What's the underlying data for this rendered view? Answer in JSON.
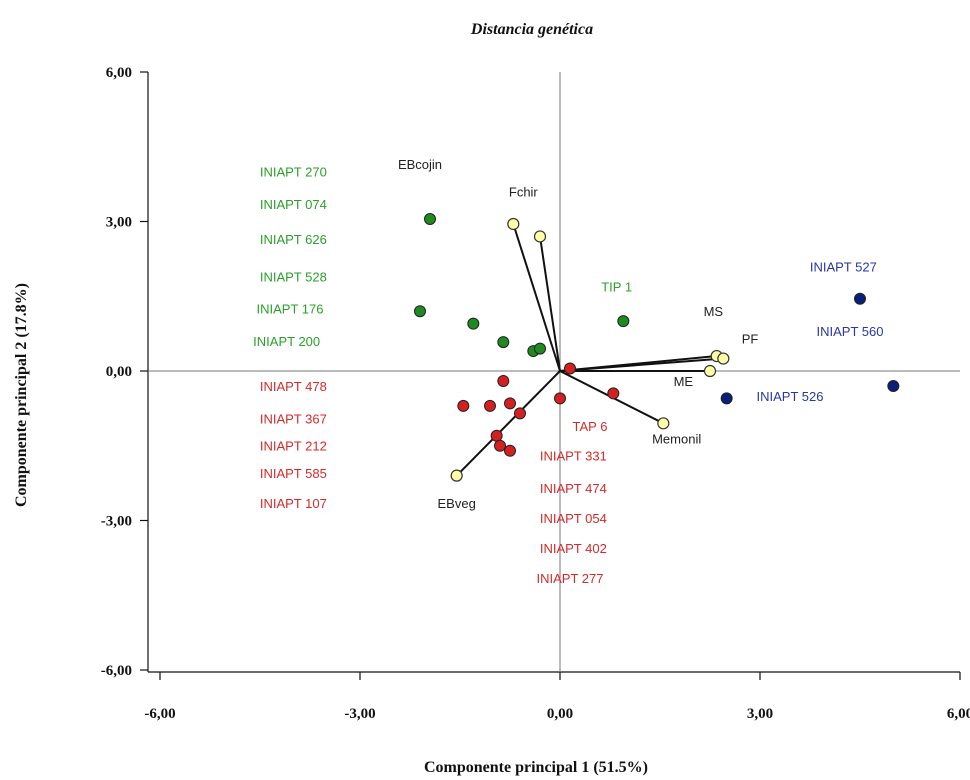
{
  "chart_data": {
    "type": "scatter",
    "title": "Distancia genética",
    "xlabel": "Componente principal 1 (51.5%)",
    "ylabel": "Componente principal 2 (17.8%)",
    "xlim": [
      -6,
      6
    ],
    "ylim": [
      -6,
      6
    ],
    "xticks": [
      {
        "value": -6,
        "label": "-6,00"
      },
      {
        "value": -3,
        "label": "-3,00"
      },
      {
        "value": 0,
        "label": "0,00"
      },
      {
        "value": 3,
        "label": "3,00"
      },
      {
        "value": 6,
        "label": "6,00"
      }
    ],
    "yticks": [
      {
        "value": 6,
        "label": "6,00"
      },
      {
        "value": 3,
        "label": "3,00"
      },
      {
        "value": 0,
        "label": "0,00"
      },
      {
        "value": -3,
        "label": "-3,00"
      },
      {
        "value": -6,
        "label": "-6,00"
      }
    ],
    "colors": {
      "green": "#1f8a1f",
      "red": "#d42020",
      "navy": "#0a1f7a",
      "yellow": "#ffffa8",
      "label_green": "#2aa02a",
      "label_red": "#d42a2a",
      "label_navy": "#2a35a8",
      "label_black": "#222222"
    },
    "vectors": [
      {
        "name": "Fchir",
        "x": -0.7,
        "y": 2.95,
        "label_x": -0.55,
        "label_y": 3.5
      },
      {
        "name": "",
        "x": -0.3,
        "y": 2.7,
        "label_x": null,
        "label_y": null
      },
      {
        "name": "MS",
        "x": 2.35,
        "y": 0.3,
        "label_x": 2.3,
        "label_y": 1.1
      },
      {
        "name": "PF",
        "x": 2.45,
        "y": 0.25,
        "label_x": 2.85,
        "label_y": 0.55
      },
      {
        "name": "ME",
        "x": 2.25,
        "y": 0.0,
        "label_x": 1.85,
        "label_y": -0.3
      },
      {
        "name": "Memonil",
        "x": 1.55,
        "y": -1.05,
        "label_x": 1.75,
        "label_y": -1.45
      },
      {
        "name": "EBveg",
        "x": -1.55,
        "y": -2.1,
        "label_x": -1.55,
        "label_y": -2.75
      },
      {
        "name": "EBcojin",
        "x": null,
        "y": null,
        "label_x": -2.1,
        "label_y": 4.05
      }
    ],
    "series": [
      {
        "color": "green",
        "points": [
          [
            -1.95,
            3.05
          ],
          [
            -2.1,
            1.2
          ],
          [
            -1.3,
            0.95
          ],
          [
            -0.85,
            0.58
          ],
          [
            -0.4,
            0.4
          ],
          [
            -0.3,
            0.45
          ],
          [
            0.95,
            1.0
          ]
        ]
      },
      {
        "color": "red",
        "points": [
          [
            0.15,
            0.05
          ],
          [
            -0.85,
            -0.2
          ],
          [
            -1.45,
            -0.7
          ],
          [
            -1.05,
            -0.7
          ],
          [
            -0.75,
            -0.65
          ],
          [
            -0.6,
            -0.85
          ],
          [
            0.0,
            -0.55
          ],
          [
            0.8,
            -0.45
          ],
          [
            -0.95,
            -1.3
          ],
          [
            -0.9,
            -1.5
          ],
          [
            -0.75,
            -1.6
          ]
        ]
      },
      {
        "color": "navy",
        "points": [
          [
            4.5,
            1.45
          ],
          [
            5.0,
            -0.3
          ],
          [
            2.5,
            -0.55
          ]
        ]
      }
    ],
    "annotations": [
      {
        "text": "INIAPT 270",
        "x": -4.0,
        "y": 3.9,
        "color": "label_green"
      },
      {
        "text": "INIAPT 074",
        "x": -4.0,
        "y": 3.25,
        "color": "label_green"
      },
      {
        "text": "INIAPT 626",
        "x": -4.0,
        "y": 2.55,
        "color": "label_green"
      },
      {
        "text": "INIAPT 528",
        "x": -4.0,
        "y": 1.8,
        "color": "label_green"
      },
      {
        "text": "INIAPT 176",
        "x": -4.05,
        "y": 1.15,
        "color": "label_green"
      },
      {
        "text": "INIAPT 200",
        "x": -4.1,
        "y": 0.5,
        "color": "label_green"
      },
      {
        "text": "TIP 1",
        "x": 0.85,
        "y": 1.6,
        "color": "label_green"
      },
      {
        "text": "INIAPT 478",
        "x": -4.0,
        "y": -0.4,
        "color": "label_red"
      },
      {
        "text": "INIAPT 367",
        "x": -4.0,
        "y": -1.05,
        "color": "label_red"
      },
      {
        "text": "INIAPT 212",
        "x": -4.0,
        "y": -1.6,
        "color": "label_red"
      },
      {
        "text": "INIAPT 585",
        "x": -4.0,
        "y": -2.15,
        "color": "label_red"
      },
      {
        "text": "INIAPT 107",
        "x": -4.0,
        "y": -2.75,
        "color": "label_red"
      },
      {
        "text": "TAP 6",
        "x": 0.45,
        "y": -1.2,
        "color": "label_red"
      },
      {
        "text": "INIAPT 331",
        "x": 0.2,
        "y": -1.8,
        "color": "label_red"
      },
      {
        "text": "INIAPT 474",
        "x": 0.2,
        "y": -2.45,
        "color": "label_red"
      },
      {
        "text": "INIAPT 054",
        "x": 0.2,
        "y": -3.05,
        "color": "label_red"
      },
      {
        "text": "INIAPT 402",
        "x": 0.2,
        "y": -3.65,
        "color": "label_red"
      },
      {
        "text": "INIAPT 277",
        "x": 0.15,
        "y": -4.25,
        "color": "label_red"
      },
      {
        "text": "INIAPT 527",
        "x": 4.25,
        "y": 2.0,
        "color": "label_navy"
      },
      {
        "text": "INIAPT 560",
        "x": 4.35,
        "y": 0.7,
        "color": "label_navy"
      },
      {
        "text": "INIAPT 526",
        "x": 3.45,
        "y": -0.6,
        "color": "label_navy"
      }
    ]
  }
}
